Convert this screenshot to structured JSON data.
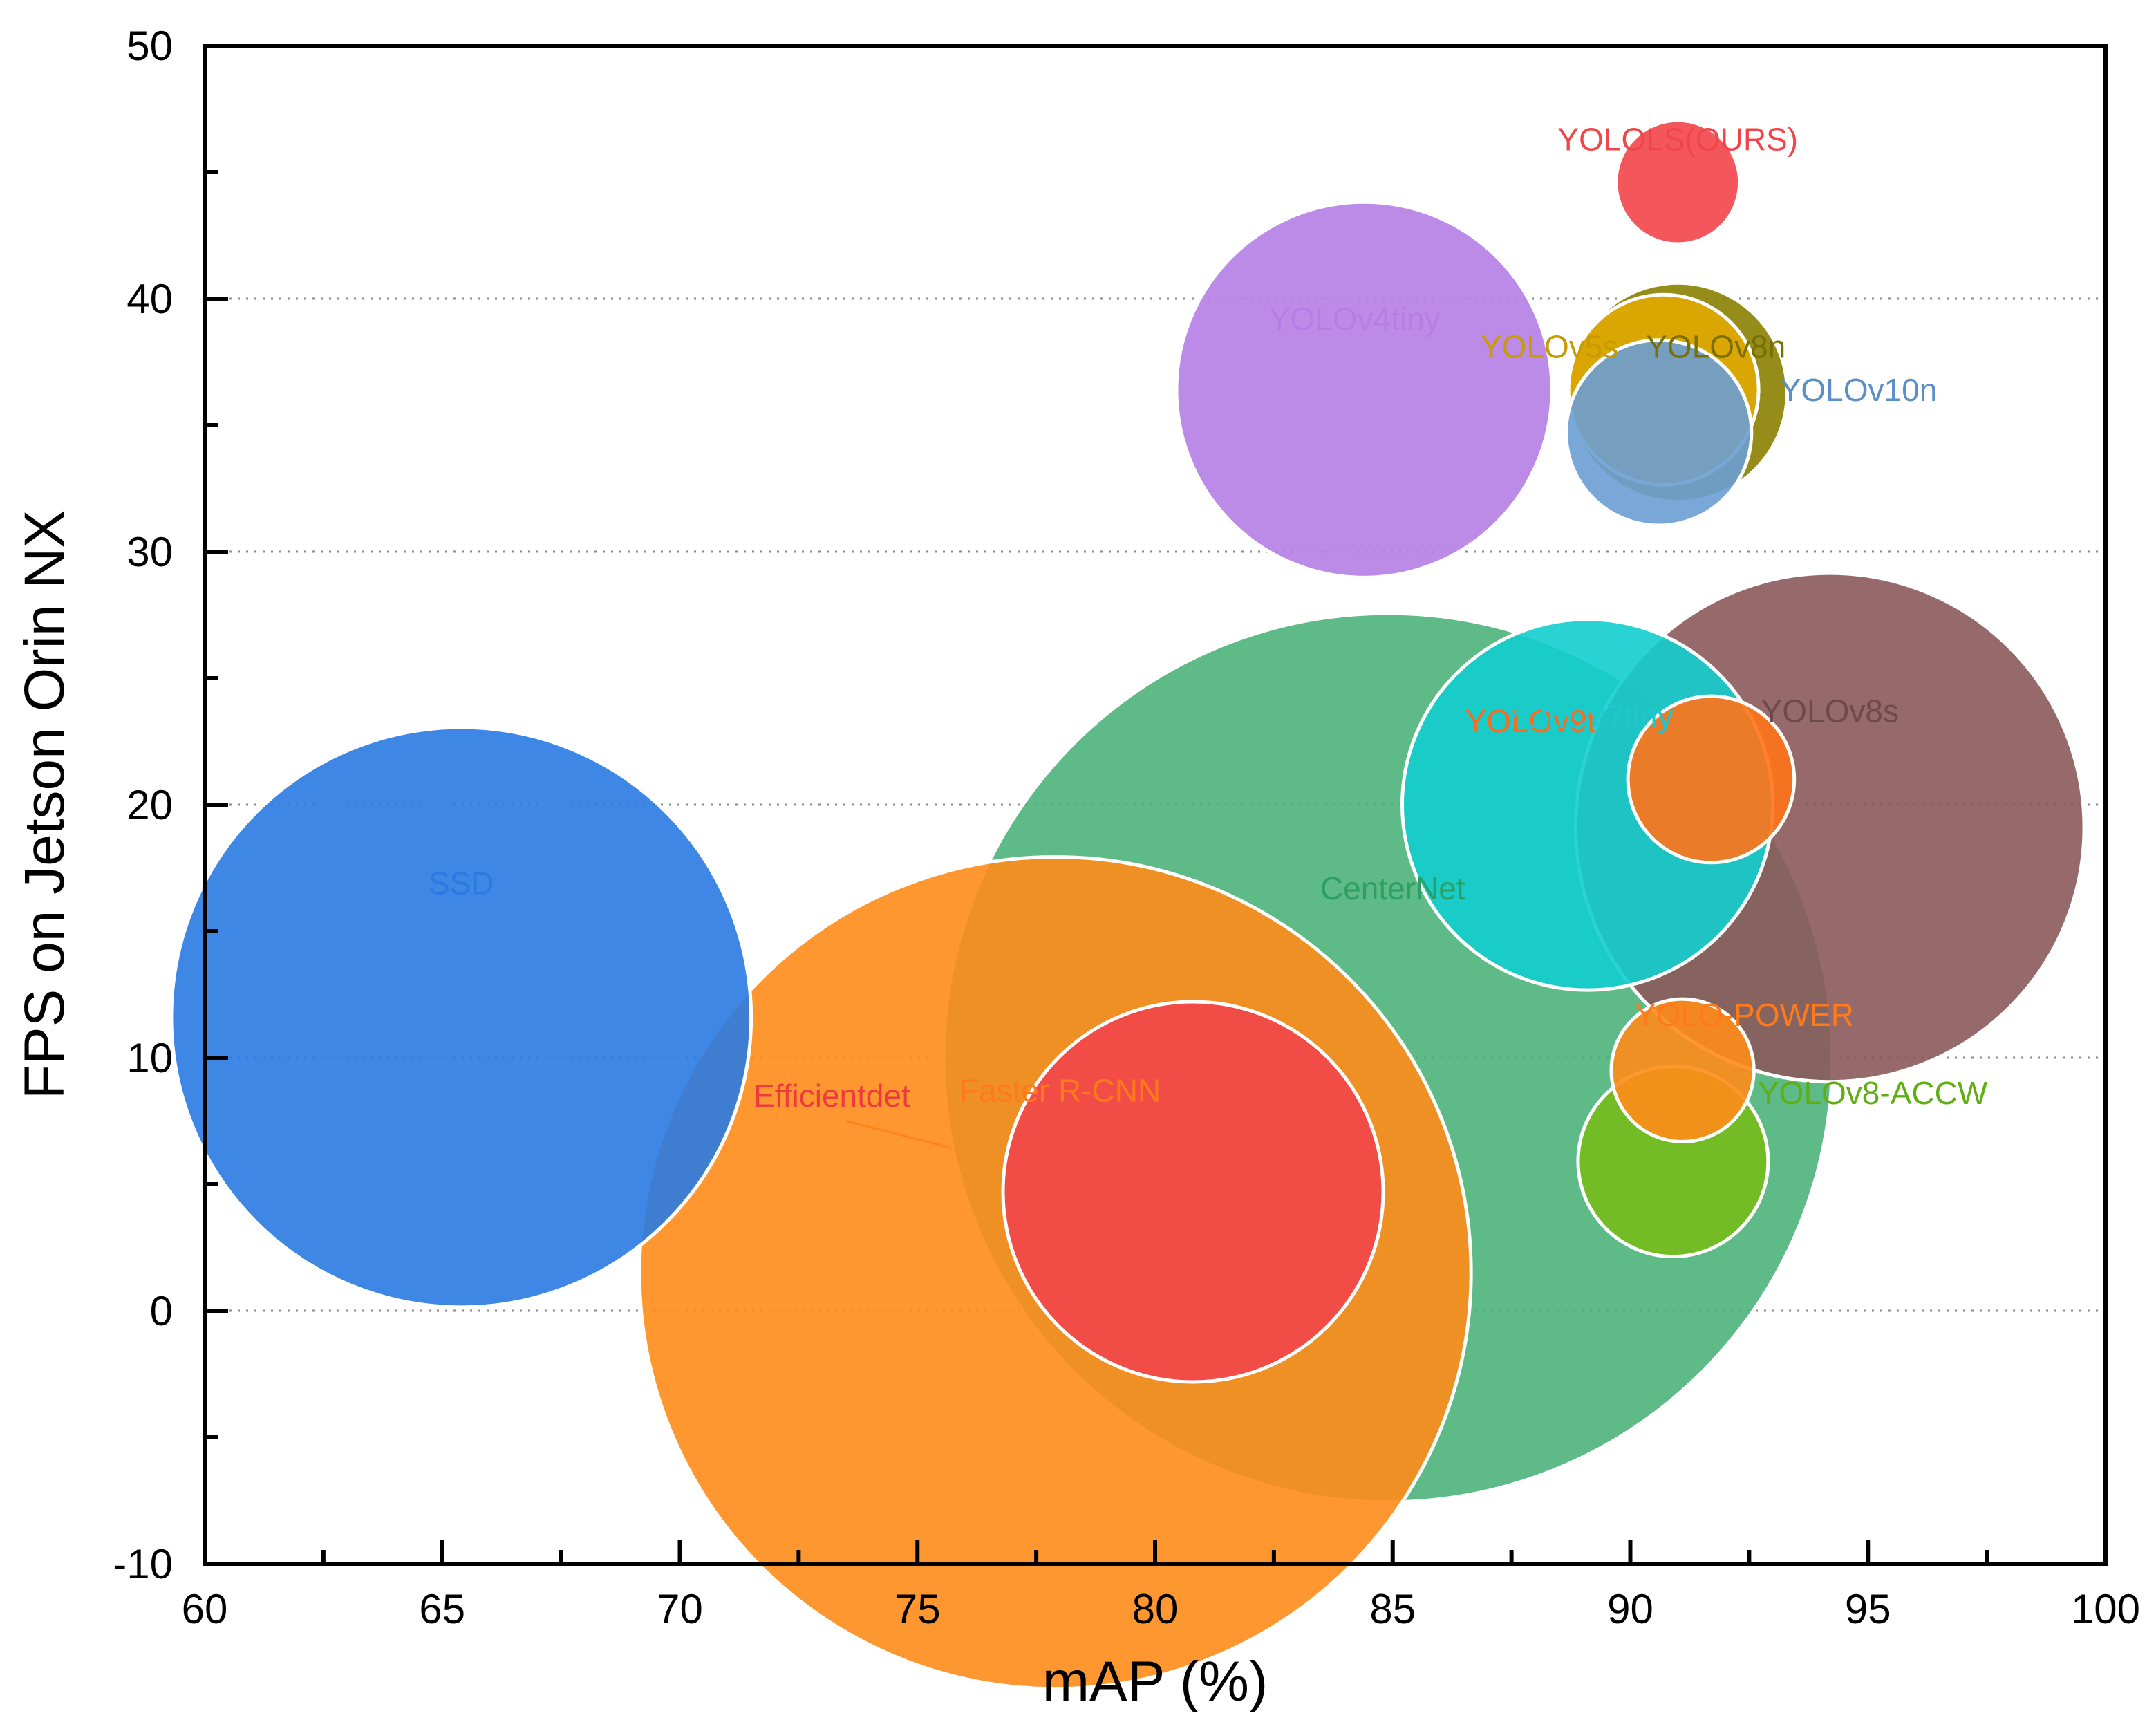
{
  "chart_data": {
    "type": "scatter",
    "variant": "bubble",
    "title": "",
    "xlabel": "mAP (%)",
    "ylabel": "FPS on Jetson Orin NX",
    "xlim": [
      60,
      100
    ],
    "ylim": [
      -10,
      50
    ],
    "x_ticks": [
      "60",
      "65",
      "70",
      "75",
      "80",
      "85",
      "90",
      "95",
      "100"
    ],
    "y_ticks": [
      "-10",
      "0",
      "10",
      "20",
      "30",
      "40",
      "50"
    ],
    "grid": "horizontal dotted at y = 0, 10, 20, 30, 40",
    "legend": "none (labels placed next to bubbles)",
    "points": [
      {
        "label": "Faster R-CNN",
        "x": 77.9,
        "y": 1.5,
        "size": 17.5,
        "color": "#ff8c1a"
      },
      {
        "label": "CenterNet",
        "x": 84.9,
        "y": 10.0,
        "size": 18.7,
        "color": "#4db37a"
      },
      {
        "label": "SSD",
        "x": 65.4,
        "y": 11.6,
        "size": 12.2,
        "color": "#2a7ae2"
      },
      {
        "label": "Efficientdet",
        "x": 80.8,
        "y": 4.7,
        "size": 8.0,
        "color": "#f2454a"
      },
      {
        "label": "YOLOv4tiny",
        "x": 84.4,
        "y": 36.4,
        "size": 7.9,
        "color": "#b57ee5"
      },
      {
        "label": "YOLOv8s",
        "x": 94.2,
        "y": 19.1,
        "size": 10.7,
        "color": "#8b5a5a"
      },
      {
        "label": "YOLOv7tiny",
        "x": 89.1,
        "y": 20.0,
        "size": 7.8,
        "color": "#13cece"
      },
      {
        "label": "YOLOv5s",
        "x": 90.7,
        "y": 36.4,
        "size": 4.0,
        "color": "#e0a800"
      },
      {
        "label": "YOLOv8n",
        "x": 91.0,
        "y": 36.3,
        "size": 4.6,
        "color": "#8a8000"
      },
      {
        "label": "YOLOv10n",
        "x": 90.6,
        "y": 34.7,
        "size": 3.9,
        "color": "#6a9fd4"
      },
      {
        "label": "YOLOv9t",
        "x": 91.7,
        "y": 21.0,
        "size": 3.5,
        "color": "#ff7318"
      },
      {
        "label": "YOLO-POWER",
        "x": 91.1,
        "y": 9.5,
        "size": 3.0,
        "color": "#ff8c1a"
      },
      {
        "label": "YOLOv8-ACCW",
        "x": 90.9,
        "y": 5.9,
        "size": 4.0,
        "color": "#76bd1c"
      },
      {
        "label": "YOLOLS(OURS)",
        "x": 91.0,
        "y": 44.6,
        "size": 2.6,
        "color": "#f2454a"
      }
    ],
    "annotations": [
      {
        "text": "YOLOLS(OURS)",
        "ax": 91.0,
        "ay": 46.3,
        "color": "#f2454a"
      },
      {
        "text": "YOLOv4tiny",
        "ax": 84.2,
        "ay": 39.2,
        "color": "#b57ee5"
      },
      {
        "text": "YOLOv5s",
        "ax": 88.3,
        "ay": 38.1,
        "color": "#c89b00"
      },
      {
        "text": "YOLOv8n",
        "ax": 91.8,
        "ay": 38.1,
        "color": "#7a7000"
      },
      {
        "text": "YOLOv10n",
        "ax": 94.8,
        "ay": 36.4,
        "color": "#5b8fc7"
      },
      {
        "text": "YOLOv9t",
        "ax": 87.9,
        "ay": 23.3,
        "color": "#ff6a1a"
      },
      {
        "text": "YOLOv7tiny",
        "ax": 89.1,
        "ay": 23.5,
        "color": "#1ec8cc"
      },
      {
        "text": "YOLOv8s",
        "ax": 94.2,
        "ay": 23.7,
        "color": "#6e4a4a"
      },
      {
        "text": "SSD",
        "ax": 65.4,
        "ay": 16.9,
        "color": "#2a7ae2"
      },
      {
        "text": "CenterNet",
        "ax": 85.0,
        "ay": 16.7,
        "color": "#2e9f62"
      },
      {
        "text": "YOLO-POWER",
        "ax": 92.4,
        "ay": 11.7,
        "color": "#ff7a1a"
      },
      {
        "text": "YOLOv8-ACCW",
        "ax": 95.1,
        "ay": 8.6,
        "color": "#5fae14"
      },
      {
        "text": "Efficientdet",
        "ax": 73.2,
        "ay": 8.5,
        "color": "#ee3a3f"
      },
      {
        "text": "Faster R-CNN",
        "ax": 78.0,
        "ay": 8.7,
        "color": "#ff7a1a"
      }
    ]
  }
}
